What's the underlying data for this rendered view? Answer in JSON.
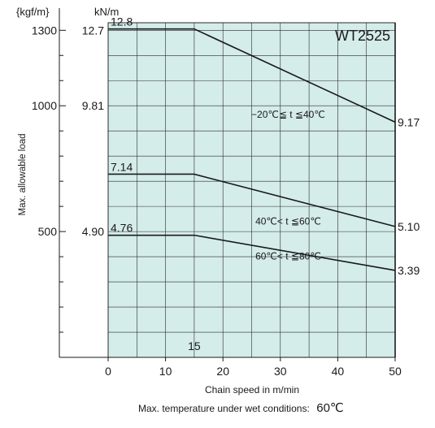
{
  "chart_data": {
    "type": "line",
    "model": "WT2525",
    "xlabel": "Chain speed in m/min",
    "ylabel": "Max. allowable load",
    "y_units_left": "{kgf/m}",
    "y_units_right": "kN/m",
    "xlim": [
      0,
      50
    ],
    "x_ticks": [
      "0",
      "10",
      "20",
      "30",
      "40",
      "50"
    ],
    "extra_x_tick": "15",
    "ylim_kgf": [
      0,
      1330
    ],
    "y_ticks_kgf": [
      {
        "value": 500,
        "label": "500"
      },
      {
        "value": 1000,
        "label": "1000"
      },
      {
        "value": 1300,
        "label": "1300"
      }
    ],
    "y_ticks_kN": [
      {
        "value_kgf": 500,
        "label": "4.90"
      },
      {
        "value_kgf": 1000,
        "label": "9.81"
      },
      {
        "value_kgf": 1300,
        "label": "12.7"
      }
    ],
    "grid": true,
    "series": [
      {
        "condition": "−20℃≦ t ≦40℃",
        "x": [
          0,
          15,
          50
        ],
        "y_kN": [
          12.8,
          12.8,
          9.17
        ],
        "start_label": "12.8",
        "end_label": "9.17"
      },
      {
        "condition": "40℃< t ≦60℃",
        "x": [
          0,
          15,
          50
        ],
        "y_kN": [
          7.14,
          7.14,
          5.1
        ],
        "start_label": "7.14",
        "end_label": "5.10"
      },
      {
        "condition": "60℃< t ≦80℃",
        "x": [
          0,
          15,
          50
        ],
        "y_kN": [
          4.76,
          4.76,
          3.39
        ],
        "start_label": "4.76",
        "end_label": "3.39"
      }
    ],
    "footnote_text": "Max. temperature under wet conditions:",
    "footnote_value": "60℃"
  },
  "colors": {
    "plot_fill": "#d4ecea",
    "line": "#1a1a1a",
    "grid": "#2a2a2a"
  }
}
